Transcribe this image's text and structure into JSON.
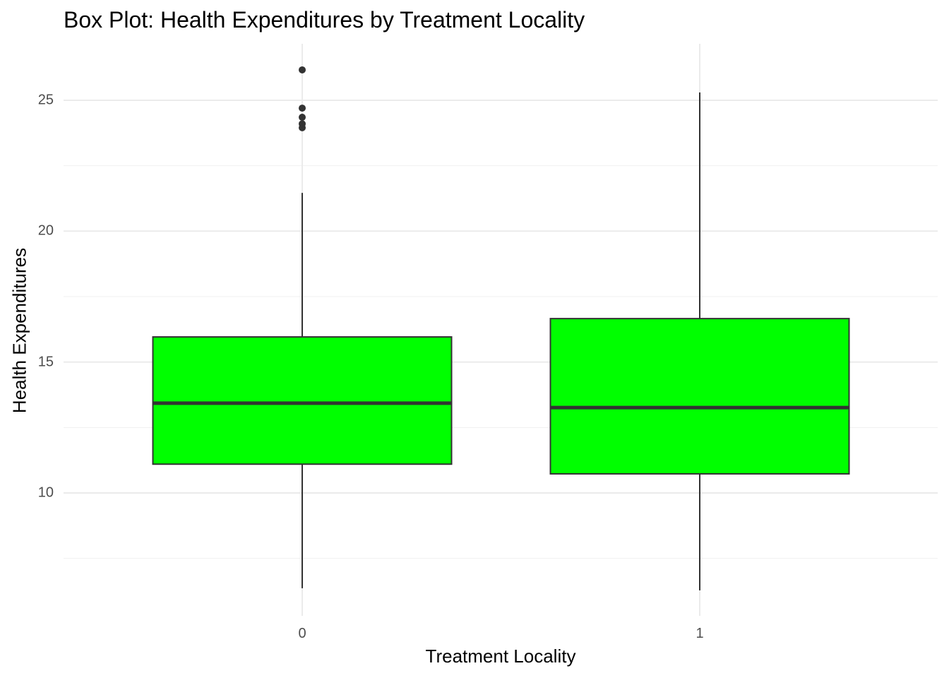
{
  "chart_data": {
    "type": "box",
    "title": "Box Plot: Health Expenditures by Treatment Locality",
    "xlabel": "Treatment Locality",
    "ylabel": "Health Expenditures",
    "categories": [
      "0",
      "1"
    ],
    "y_ticks": [
      10,
      15,
      20,
      25
    ],
    "ylim": [
      5.2,
      27.2
    ],
    "grid": true,
    "legend": null,
    "fill_color": "#00FF00",
    "outline_color": "#333333",
    "boxes": [
      {
        "category": "0",
        "whisker_low": 6.36,
        "q1": 11.1,
        "median": 13.43,
        "q3": 15.96,
        "whisker_high": 21.46,
        "outliers": [
          23.95,
          24.1,
          24.35,
          24.7,
          26.16
        ]
      },
      {
        "category": "1",
        "whisker_low": 6.28,
        "q1": 10.73,
        "median": 13.26,
        "q3": 16.66,
        "whisker_high": 25.3,
        "outliers": []
      }
    ]
  }
}
